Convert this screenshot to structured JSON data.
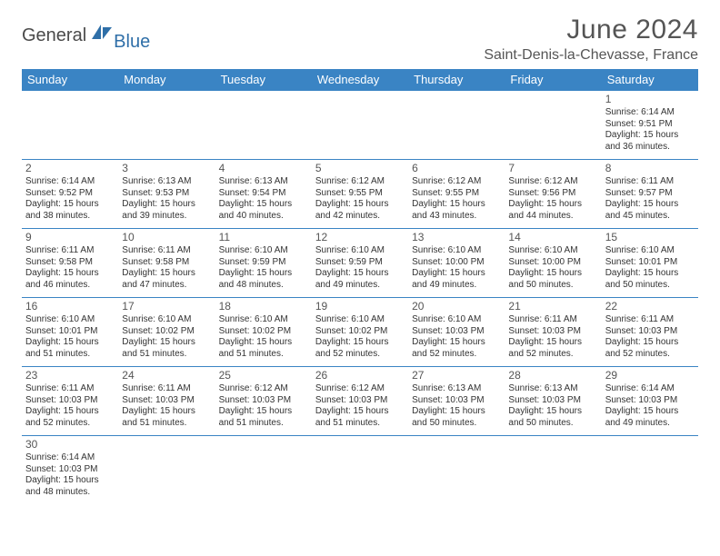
{
  "brand": {
    "part1": "General",
    "part2": "Blue"
  },
  "title": "June 2024",
  "location": "Saint-Denis-la-Chevasse, France",
  "colors": {
    "header_bg": "#3a84c4",
    "header_text": "#ffffff",
    "border": "#3a84c4",
    "text": "#333333",
    "title_text": "#555555",
    "logo_gray": "#4a4a4a",
    "logo_blue": "#2f6fa8",
    "background": "#ffffff"
  },
  "typography": {
    "title_fontsize": 30,
    "location_fontsize": 16,
    "dayhead_fontsize": 13,
    "daynum_fontsize": 12,
    "cell_fontsize": 10
  },
  "day_headers": [
    "Sunday",
    "Monday",
    "Tuesday",
    "Wednesday",
    "Thursday",
    "Friday",
    "Saturday"
  ],
  "weeks": [
    [
      {
        "blank": true
      },
      {
        "blank": true
      },
      {
        "blank": true
      },
      {
        "blank": true
      },
      {
        "blank": true
      },
      {
        "blank": true
      },
      {
        "n": "1",
        "sr": "Sunrise: 6:14 AM",
        "ss": "Sunset: 9:51 PM",
        "d1": "Daylight: 15 hours",
        "d2": "and 36 minutes."
      }
    ],
    [
      {
        "n": "2",
        "sr": "Sunrise: 6:14 AM",
        "ss": "Sunset: 9:52 PM",
        "d1": "Daylight: 15 hours",
        "d2": "and 38 minutes."
      },
      {
        "n": "3",
        "sr": "Sunrise: 6:13 AM",
        "ss": "Sunset: 9:53 PM",
        "d1": "Daylight: 15 hours",
        "d2": "and 39 minutes."
      },
      {
        "n": "4",
        "sr": "Sunrise: 6:13 AM",
        "ss": "Sunset: 9:54 PM",
        "d1": "Daylight: 15 hours",
        "d2": "and 40 minutes."
      },
      {
        "n": "5",
        "sr": "Sunrise: 6:12 AM",
        "ss": "Sunset: 9:55 PM",
        "d1": "Daylight: 15 hours",
        "d2": "and 42 minutes."
      },
      {
        "n": "6",
        "sr": "Sunrise: 6:12 AM",
        "ss": "Sunset: 9:55 PM",
        "d1": "Daylight: 15 hours",
        "d2": "and 43 minutes."
      },
      {
        "n": "7",
        "sr": "Sunrise: 6:12 AM",
        "ss": "Sunset: 9:56 PM",
        "d1": "Daylight: 15 hours",
        "d2": "and 44 minutes."
      },
      {
        "n": "8",
        "sr": "Sunrise: 6:11 AM",
        "ss": "Sunset: 9:57 PM",
        "d1": "Daylight: 15 hours",
        "d2": "and 45 minutes."
      }
    ],
    [
      {
        "n": "9",
        "sr": "Sunrise: 6:11 AM",
        "ss": "Sunset: 9:58 PM",
        "d1": "Daylight: 15 hours",
        "d2": "and 46 minutes."
      },
      {
        "n": "10",
        "sr": "Sunrise: 6:11 AM",
        "ss": "Sunset: 9:58 PM",
        "d1": "Daylight: 15 hours",
        "d2": "and 47 minutes."
      },
      {
        "n": "11",
        "sr": "Sunrise: 6:10 AM",
        "ss": "Sunset: 9:59 PM",
        "d1": "Daylight: 15 hours",
        "d2": "and 48 minutes."
      },
      {
        "n": "12",
        "sr": "Sunrise: 6:10 AM",
        "ss": "Sunset: 9:59 PM",
        "d1": "Daylight: 15 hours",
        "d2": "and 49 minutes."
      },
      {
        "n": "13",
        "sr": "Sunrise: 6:10 AM",
        "ss": "Sunset: 10:00 PM",
        "d1": "Daylight: 15 hours",
        "d2": "and 49 minutes."
      },
      {
        "n": "14",
        "sr": "Sunrise: 6:10 AM",
        "ss": "Sunset: 10:00 PM",
        "d1": "Daylight: 15 hours",
        "d2": "and 50 minutes."
      },
      {
        "n": "15",
        "sr": "Sunrise: 6:10 AM",
        "ss": "Sunset: 10:01 PM",
        "d1": "Daylight: 15 hours",
        "d2": "and 50 minutes."
      }
    ],
    [
      {
        "n": "16",
        "sr": "Sunrise: 6:10 AM",
        "ss": "Sunset: 10:01 PM",
        "d1": "Daylight: 15 hours",
        "d2": "and 51 minutes."
      },
      {
        "n": "17",
        "sr": "Sunrise: 6:10 AM",
        "ss": "Sunset: 10:02 PM",
        "d1": "Daylight: 15 hours",
        "d2": "and 51 minutes."
      },
      {
        "n": "18",
        "sr": "Sunrise: 6:10 AM",
        "ss": "Sunset: 10:02 PM",
        "d1": "Daylight: 15 hours",
        "d2": "and 51 minutes."
      },
      {
        "n": "19",
        "sr": "Sunrise: 6:10 AM",
        "ss": "Sunset: 10:02 PM",
        "d1": "Daylight: 15 hours",
        "d2": "and 52 minutes."
      },
      {
        "n": "20",
        "sr": "Sunrise: 6:10 AM",
        "ss": "Sunset: 10:03 PM",
        "d1": "Daylight: 15 hours",
        "d2": "and 52 minutes."
      },
      {
        "n": "21",
        "sr": "Sunrise: 6:11 AM",
        "ss": "Sunset: 10:03 PM",
        "d1": "Daylight: 15 hours",
        "d2": "and 52 minutes."
      },
      {
        "n": "22",
        "sr": "Sunrise: 6:11 AM",
        "ss": "Sunset: 10:03 PM",
        "d1": "Daylight: 15 hours",
        "d2": "and 52 minutes."
      }
    ],
    [
      {
        "n": "23",
        "sr": "Sunrise: 6:11 AM",
        "ss": "Sunset: 10:03 PM",
        "d1": "Daylight: 15 hours",
        "d2": "and 52 minutes."
      },
      {
        "n": "24",
        "sr": "Sunrise: 6:11 AM",
        "ss": "Sunset: 10:03 PM",
        "d1": "Daylight: 15 hours",
        "d2": "and 51 minutes."
      },
      {
        "n": "25",
        "sr": "Sunrise: 6:12 AM",
        "ss": "Sunset: 10:03 PM",
        "d1": "Daylight: 15 hours",
        "d2": "and 51 minutes."
      },
      {
        "n": "26",
        "sr": "Sunrise: 6:12 AM",
        "ss": "Sunset: 10:03 PM",
        "d1": "Daylight: 15 hours",
        "d2": "and 51 minutes."
      },
      {
        "n": "27",
        "sr": "Sunrise: 6:13 AM",
        "ss": "Sunset: 10:03 PM",
        "d1": "Daylight: 15 hours",
        "d2": "and 50 minutes."
      },
      {
        "n": "28",
        "sr": "Sunrise: 6:13 AM",
        "ss": "Sunset: 10:03 PM",
        "d1": "Daylight: 15 hours",
        "d2": "and 50 minutes."
      },
      {
        "n": "29",
        "sr": "Sunrise: 6:14 AM",
        "ss": "Sunset: 10:03 PM",
        "d1": "Daylight: 15 hours",
        "d2": "and 49 minutes."
      }
    ],
    [
      {
        "n": "30",
        "sr": "Sunrise: 6:14 AM",
        "ss": "Sunset: 10:03 PM",
        "d1": "Daylight: 15 hours",
        "d2": "and 48 minutes."
      },
      {
        "blank": true
      },
      {
        "blank": true
      },
      {
        "blank": true
      },
      {
        "blank": true
      },
      {
        "blank": true
      },
      {
        "blank": true
      }
    ]
  ]
}
